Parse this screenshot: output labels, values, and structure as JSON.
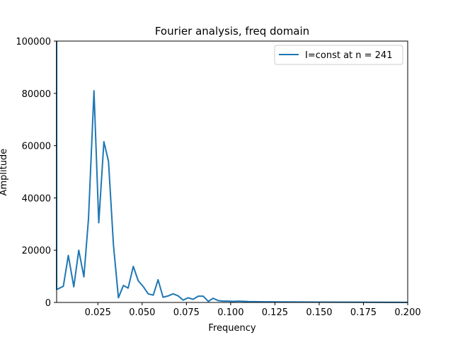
{
  "chart_data": {
    "type": "line",
    "title": "Fourier analysis, freq domain",
    "xlabel": "Frequency",
    "ylabel": "Amplitude",
    "xlim": [
      0.0017,
      0.2
    ],
    "ylim": [
      0,
      100000
    ],
    "x_ticks": [
      0.025,
      0.05,
      0.075,
      0.1,
      0.125,
      0.15,
      0.175,
      0.2
    ],
    "x_tick_labels": [
      "0.025",
      "0.050",
      "0.075",
      "0.100",
      "0.125",
      "0.150",
      "0.175",
      "0.200"
    ],
    "y_ticks": [
      0,
      20000,
      40000,
      60000,
      80000,
      100000
    ],
    "y_tick_labels": [
      "0",
      "20000",
      "40000",
      "60000",
      "80000",
      "100000"
    ],
    "grid": false,
    "legend": {
      "position": "top-right"
    },
    "series": [
      {
        "name": "I=const at n = 241",
        "color": "#1f77b4",
        "x": [
          0.0017,
          0.0017,
          0.0025,
          0.0055,
          0.0083,
          0.0114,
          0.0142,
          0.0171,
          0.0197,
          0.0228,
          0.0255,
          0.0284,
          0.031,
          0.0338,
          0.0366,
          0.0394,
          0.0421,
          0.045,
          0.0478,
          0.0507,
          0.0534,
          0.0563,
          0.059,
          0.0618,
          0.0647,
          0.0675,
          0.0704,
          0.0731,
          0.076,
          0.0788,
          0.0817,
          0.0845,
          0.0874,
          0.0901,
          0.093,
          0.0958,
          0.0987,
          0.1015,
          0.1043,
          0.11,
          0.12,
          0.13,
          0.15,
          0.17,
          0.185,
          0.2
        ],
        "y": [
          100000,
          5000,
          5200,
          6200,
          18000,
          6000,
          20000,
          9800,
          32000,
          81000,
          30500,
          61500,
          54000,
          22000,
          1800,
          6500,
          5500,
          13800,
          8300,
          6000,
          3300,
          2800,
          8700,
          2000,
          2500,
          3300,
          2500,
          900,
          1800,
          1200,
          2400,
          2400,
          400,
          1600,
          700,
          500,
          500,
          400,
          500,
          350,
          250,
          200,
          150,
          100,
          80,
          50
        ]
      }
    ]
  }
}
